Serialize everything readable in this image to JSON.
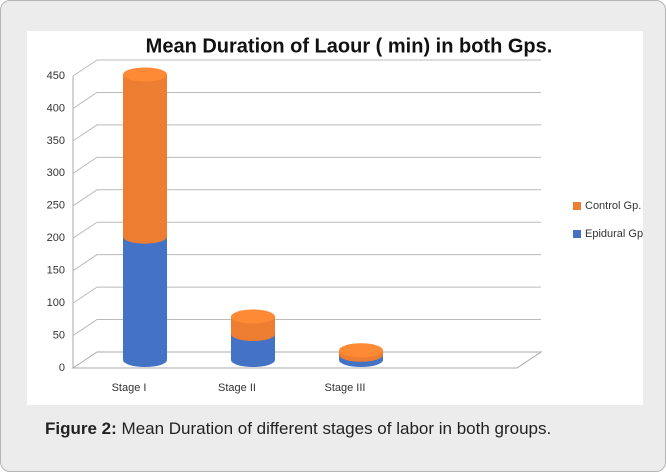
{
  "chart_data": {
    "type": "bar",
    "stacked": true,
    "title": "Mean Duration of Laour ( min) in both Gps.",
    "categories": [
      "Stage I",
      "Stage II",
      "Stage III"
    ],
    "series": [
      {
        "name": "Epidural Gp.",
        "color": "#4472c4",
        "values": [
          190,
          40,
          8
        ]
      },
      {
        "name": "Control Gp.",
        "color": "#ed7d31",
        "values": [
          250,
          27,
          7
        ]
      }
    ],
    "ylim": [
      0,
      450
    ],
    "yticks": [
      0,
      50,
      100,
      150,
      200,
      250,
      300,
      350,
      400,
      450
    ],
    "grid": true,
    "legend": "right"
  },
  "caption": {
    "label": "Figure 2:",
    "text": "Mean Duration of different stages of labor in both groups."
  }
}
